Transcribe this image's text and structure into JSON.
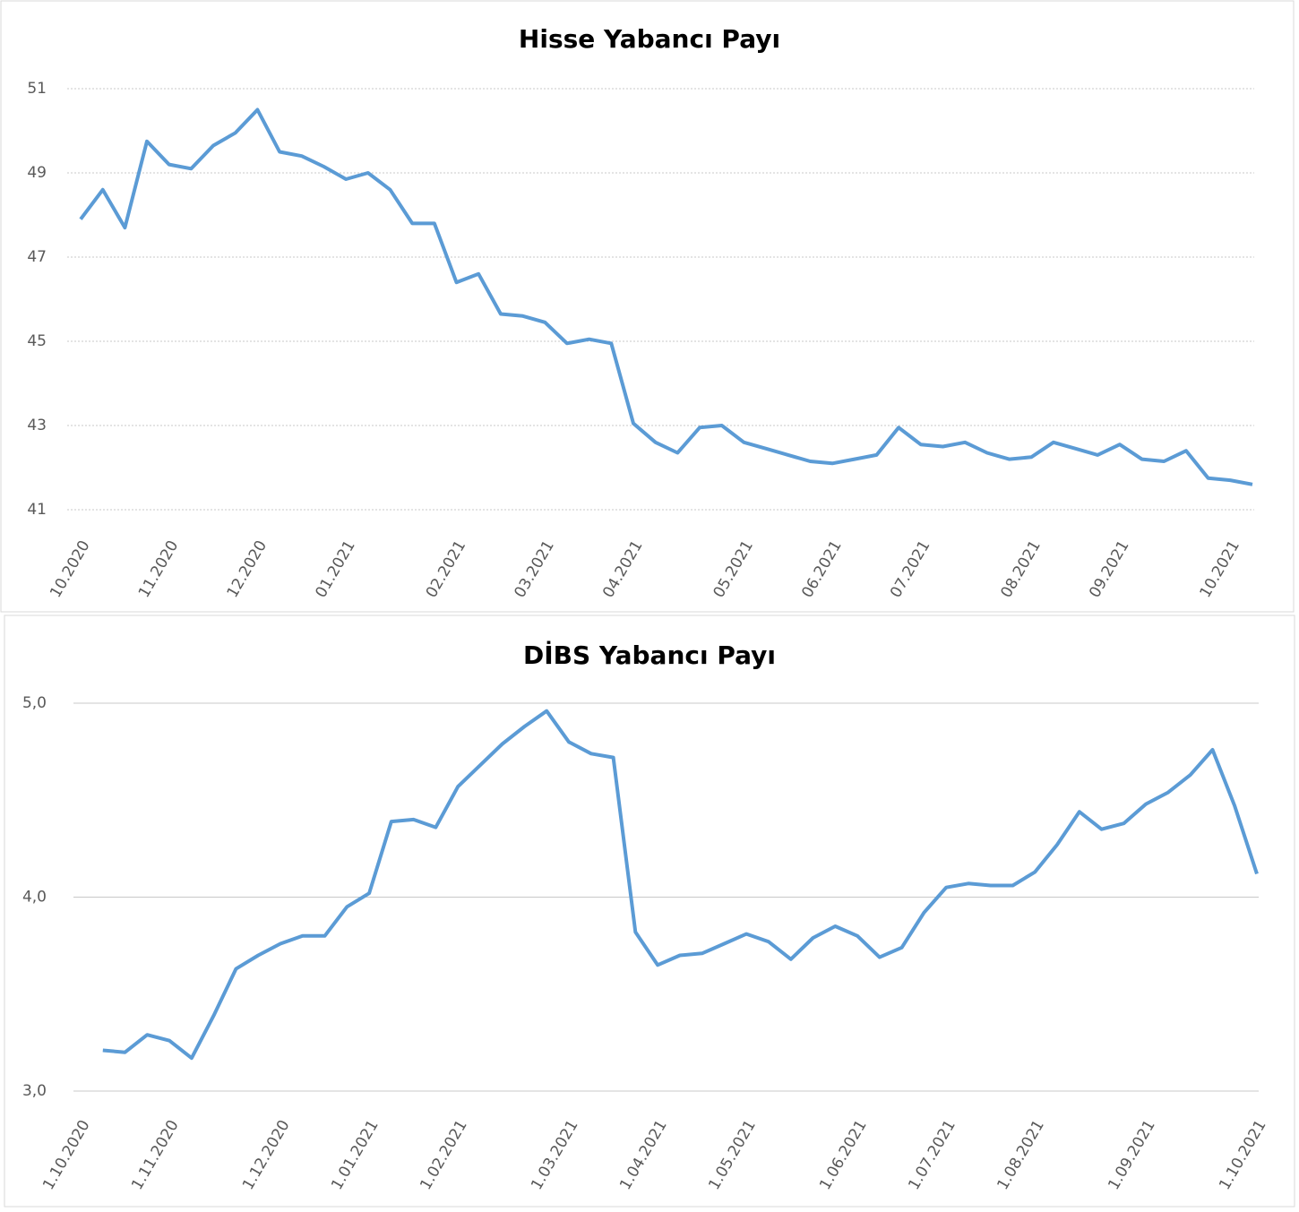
{
  "chart_data": [
    {
      "type": "line",
      "title": "Hisse Yabancı Payı",
      "categories": [
        "10.2020",
        null,
        null,
        null,
        "11.2020",
        null,
        null,
        null,
        "12.2020",
        null,
        null,
        null,
        "01.2021",
        null,
        null,
        null,
        null,
        "02.2021",
        null,
        null,
        null,
        "03.2021",
        null,
        null,
        null,
        "04.2021",
        null,
        null,
        null,
        null,
        "05.2021",
        null,
        null,
        null,
        "06.2021",
        null,
        null,
        null,
        "07.2021",
        null,
        null,
        null,
        null,
        "08.2021",
        null,
        null,
        null,
        "09.2021",
        null,
        null,
        null,
        null,
        "10.2021",
        null
      ],
      "series": [
        {
          "name": "Hisse",
          "color": "#5b9bd5",
          "values": [
            47.9,
            48.6,
            47.7,
            49.75,
            49.2,
            49.1,
            49.65,
            49.95,
            50.5,
            49.5,
            49.4,
            49.15,
            48.85,
            49.0,
            48.6,
            47.8,
            47.8,
            46.4,
            46.6,
            45.65,
            45.6,
            45.45,
            44.95,
            45.05,
            44.95,
            43.05,
            42.6,
            42.35,
            42.95,
            43.0,
            42.6,
            42.45,
            42.3,
            42.15,
            42.1,
            42.2,
            42.3,
            42.95,
            42.55,
            42.5,
            42.6,
            42.35,
            42.2,
            42.25,
            42.6,
            42.45,
            42.3,
            42.55,
            42.2,
            42.15,
            42.4,
            41.75,
            41.7,
            41.6
          ]
        }
      ],
      "ylim": [
        41,
        51
      ],
      "yticks": [
        41,
        43,
        45,
        47,
        49,
        51
      ],
      "grid": true
    },
    {
      "type": "line",
      "title": "DİBS Yabancı Payı",
      "categories": [
        "1.10.2020",
        null,
        null,
        null,
        "1.11.2020",
        null,
        null,
        null,
        null,
        "1.12.2020",
        null,
        null,
        null,
        "1.01.2021",
        null,
        null,
        null,
        "1.02.2021",
        null,
        null,
        null,
        null,
        "1.03.2021",
        null,
        null,
        null,
        "1.04.2021",
        null,
        null,
        null,
        "1.05.2021",
        null,
        null,
        null,
        null,
        "1.06.2021",
        null,
        null,
        null,
        "1.07.2021",
        null,
        null,
        null,
        "1.08.2021",
        null,
        null,
        null,
        null,
        "1.09.2021",
        null,
        null,
        null,
        null,
        "1.10.2021"
      ],
      "series": [
        {
          "name": "DİBS",
          "color": "#5b9bd5",
          "values": [
            null,
            3.21,
            3.2,
            3.29,
            3.26,
            3.17,
            3.39,
            3.63,
            3.7,
            3.76,
            3.8,
            3.8,
            3.95,
            4.02,
            4.39,
            4.4,
            4.36,
            4.57,
            4.68,
            4.79,
            4.88,
            4.96,
            4.8,
            4.74,
            4.72,
            3.82,
            3.65,
            3.7,
            3.71,
            3.76,
            3.81,
            3.77,
            3.68,
            3.79,
            3.85,
            3.8,
            3.69,
            3.74,
            3.92,
            4.05,
            4.07,
            4.06,
            4.06,
            4.13,
            4.27,
            4.44,
            4.35,
            4.38,
            4.48,
            4.54,
            4.63,
            4.76,
            4.47,
            4.12
          ]
        }
      ],
      "ylim": [
        3,
        5
      ],
      "yticks": [
        {
          "value": 3,
          "label": "3,0"
        },
        {
          "value": 4,
          "label": "4,0"
        },
        {
          "value": 5,
          "label": "5,0"
        }
      ],
      "grid": true
    }
  ]
}
